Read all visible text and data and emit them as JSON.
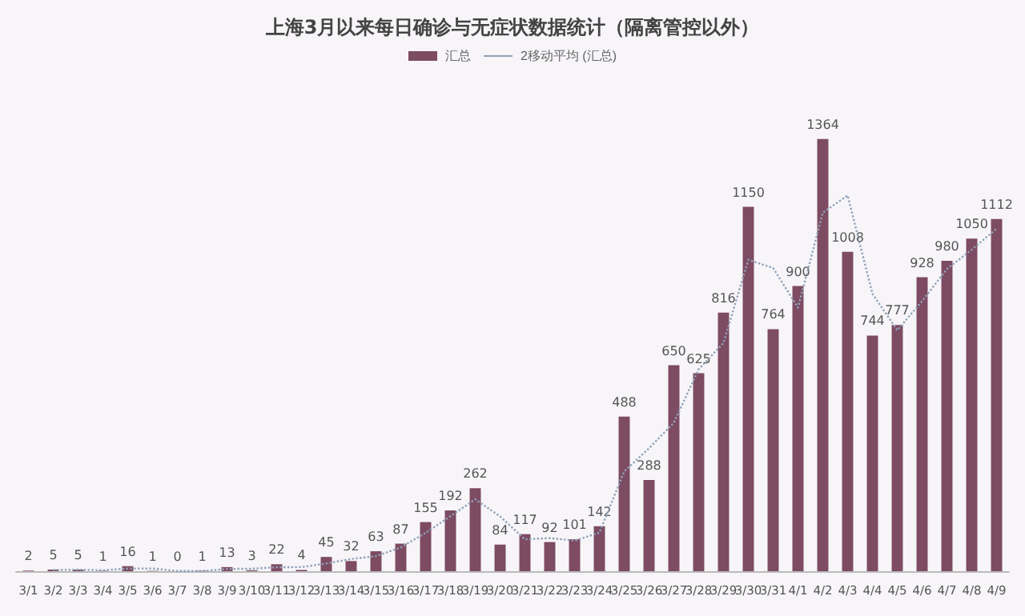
{
  "chart_data": {
    "type": "bar",
    "title": "上海3月以来每日确诊与无症状数据统计（隔离管控以外）",
    "categories": [
      "3/1",
      "3/2",
      "3/3",
      "3/4",
      "3/5",
      "3/6",
      "3/7",
      "3/8",
      "3/9",
      "3/10",
      "3/11",
      "3/12",
      "3/13",
      "3/14",
      "3/15",
      "3/16",
      "3/17",
      "3/18",
      "3/19",
      "3/20",
      "3/21",
      "3/22",
      "3/23",
      "3/24",
      "3/25",
      "3/26",
      "3/27",
      "3/28",
      "3/29",
      "3/30",
      "3/31",
      "4/1",
      "4/2",
      "4/3",
      "4/4",
      "4/5",
      "4/6",
      "4/7",
      "4/8",
      "4/9"
    ],
    "series": [
      {
        "name": "汇总",
        "color": "#7d4b62",
        "values": [
          2,
          5,
          5,
          1,
          16,
          1,
          0,
          1,
          13,
          3,
          22,
          4,
          45,
          32,
          63,
          87,
          155,
          192,
          262,
          84,
          117,
          92,
          101,
          142,
          488,
          288,
          650,
          625,
          816,
          1150,
          764,
          900,
          1364,
          1008,
          744,
          777,
          928,
          980,
          1050,
          1112
        ],
        "value_labels": [
          "2",
          "5",
          "5",
          "1",
          "16",
          "1",
          "0",
          "1",
          "13",
          "3",
          "22",
          "4",
          "45",
          "32",
          "63",
          "87",
          "155",
          "192",
          "262",
          "84",
          "117",
          "92",
          "101",
          "142",
          "488",
          "288",
          "650",
          "625",
          "816",
          "1150",
          "764",
          "900",
          "1364",
          "1008",
          "744",
          "777",
          "928",
          "980",
          "1050",
          "1112"
        ]
      },
      {
        "name": "2移动平均 (汇总)",
        "type": "line",
        "color": "#8fa3b8",
        "line_style": "dotted",
        "marker": "none",
        "values": [
          null,
          3.5,
          5,
          3,
          8.5,
          8.5,
          0.5,
          0.5,
          7,
          8,
          12.5,
          13,
          24.5,
          38.5,
          47.5,
          75,
          121,
          173.5,
          227,
          173,
          100.5,
          104.5,
          96.5,
          121.5,
          315,
          388,
          469,
          637.5,
          720.5,
          983,
          957,
          832,
          1132,
          1186,
          876,
          760.5,
          852.5,
          954,
          1015,
          1081
        ]
      }
    ],
    "legend": "top"
  }
}
